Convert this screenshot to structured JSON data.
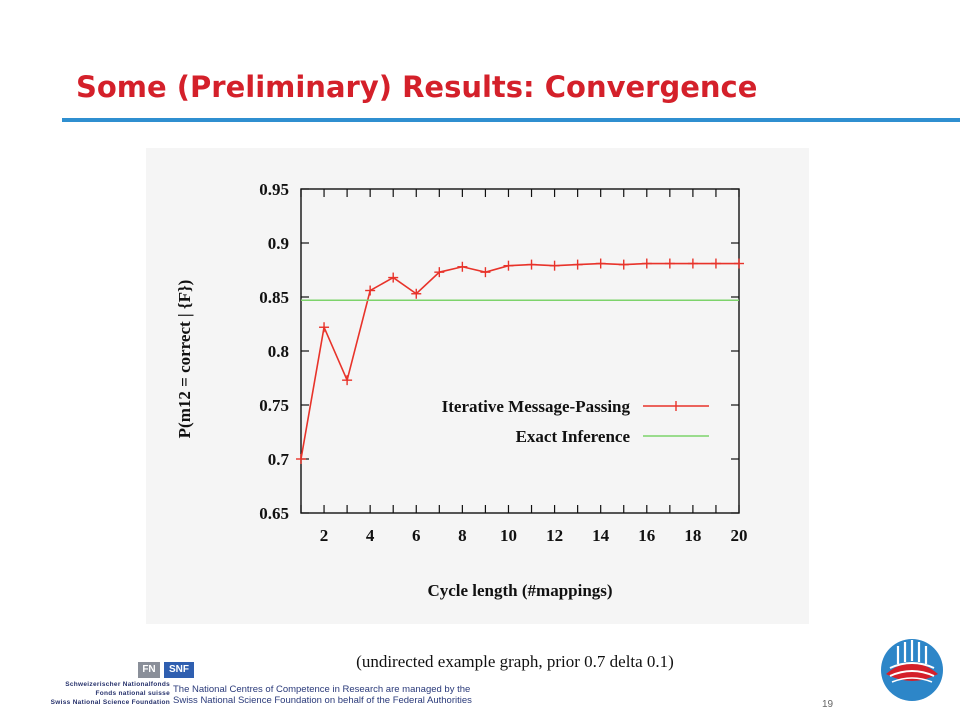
{
  "slide": {
    "title": "Some (Preliminary) Results: Convergence",
    "caption": "(undirected example graph, prior 0.7 delta 0.1)",
    "page_number": "19",
    "colors": {
      "title": "#d4202a",
      "rule": "#2f8fd0"
    }
  },
  "footer": {
    "line1": "The National Centres of Competence in Research are managed by the",
    "line2": "Swiss National Science Foundation on behalf of the Federal Authorities",
    "snf_mark_fn": "FN",
    "snf_mark_snf": "SNF",
    "snf_name_1": "Schweizerischer Nationalfonds",
    "snf_name_2": "Fonds national suisse",
    "snf_name_3": "Swiss National Science Foundation"
  },
  "chart_data": {
    "type": "line",
    "xlabel": "Cycle length (#mappings)",
    "ylabel": "P(m12 = correct | {F})",
    "xlim": [
      1,
      20
    ],
    "ylim": [
      0.65,
      0.95
    ],
    "xticks": [
      2,
      4,
      6,
      8,
      10,
      12,
      14,
      16,
      18,
      20
    ],
    "yticks": [
      0.65,
      0.7,
      0.75,
      0.8,
      0.85,
      0.9,
      0.95
    ],
    "ytick_labels": [
      "0.65",
      "0.7",
      "0.75",
      "0.8",
      "0.85",
      "0.9",
      "0.95"
    ],
    "legend_position": "center-right",
    "series": [
      {
        "name": "Iterative Message-Passing",
        "color": "#e8332a",
        "marker": "plus",
        "x": [
          1,
          2,
          3,
          4,
          5,
          6,
          7,
          8,
          9,
          10,
          11,
          12,
          13,
          14,
          15,
          16,
          17,
          18,
          19,
          20
        ],
        "y": [
          0.7,
          0.822,
          0.773,
          0.856,
          0.868,
          0.853,
          0.873,
          0.878,
          0.873,
          0.879,
          0.88,
          0.879,
          0.88,
          0.881,
          0.88,
          0.881,
          0.881,
          0.881,
          0.881,
          0.881
        ]
      },
      {
        "name": "Exact Inference",
        "color": "#7dd36b",
        "marker": "none",
        "x": [
          1,
          20
        ],
        "y": [
          0.847,
          0.847
        ]
      }
    ]
  }
}
